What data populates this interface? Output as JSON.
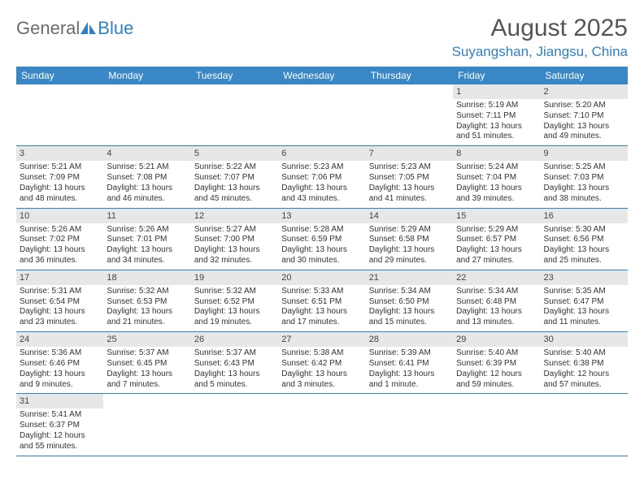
{
  "branding": {
    "logo_word1": "General",
    "logo_word2": "Blue",
    "logo_color_gray": "#6b6b6b",
    "logo_color_blue": "#2f81c5"
  },
  "header": {
    "title": "August 2025",
    "subtitle": "Suyangshan, Jiangsu, China"
  },
  "colors": {
    "header_row_bg": "#3a87c8",
    "header_row_text": "#ffffff",
    "daynum_bg": "#e7e7e7",
    "cell_border": "#2f81c5",
    "text": "#333333"
  },
  "dayNames": [
    "Sunday",
    "Monday",
    "Tuesday",
    "Wednesday",
    "Thursday",
    "Friday",
    "Saturday"
  ],
  "weeks": [
    [
      null,
      null,
      null,
      null,
      null,
      {
        "day": "1",
        "sunrise": "Sunrise: 5:19 AM",
        "sunset": "Sunset: 7:11 PM",
        "daylight1": "Daylight: 13 hours",
        "daylight2": "and 51 minutes."
      },
      {
        "day": "2",
        "sunrise": "Sunrise: 5:20 AM",
        "sunset": "Sunset: 7:10 PM",
        "daylight1": "Daylight: 13 hours",
        "daylight2": "and 49 minutes."
      }
    ],
    [
      {
        "day": "3",
        "sunrise": "Sunrise: 5:21 AM",
        "sunset": "Sunset: 7:09 PM",
        "daylight1": "Daylight: 13 hours",
        "daylight2": "and 48 minutes."
      },
      {
        "day": "4",
        "sunrise": "Sunrise: 5:21 AM",
        "sunset": "Sunset: 7:08 PM",
        "daylight1": "Daylight: 13 hours",
        "daylight2": "and 46 minutes."
      },
      {
        "day": "5",
        "sunrise": "Sunrise: 5:22 AM",
        "sunset": "Sunset: 7:07 PM",
        "daylight1": "Daylight: 13 hours",
        "daylight2": "and 45 minutes."
      },
      {
        "day": "6",
        "sunrise": "Sunrise: 5:23 AM",
        "sunset": "Sunset: 7:06 PM",
        "daylight1": "Daylight: 13 hours",
        "daylight2": "and 43 minutes."
      },
      {
        "day": "7",
        "sunrise": "Sunrise: 5:23 AM",
        "sunset": "Sunset: 7:05 PM",
        "daylight1": "Daylight: 13 hours",
        "daylight2": "and 41 minutes."
      },
      {
        "day": "8",
        "sunrise": "Sunrise: 5:24 AM",
        "sunset": "Sunset: 7:04 PM",
        "daylight1": "Daylight: 13 hours",
        "daylight2": "and 39 minutes."
      },
      {
        "day": "9",
        "sunrise": "Sunrise: 5:25 AM",
        "sunset": "Sunset: 7:03 PM",
        "daylight1": "Daylight: 13 hours",
        "daylight2": "and 38 minutes."
      }
    ],
    [
      {
        "day": "10",
        "sunrise": "Sunrise: 5:26 AM",
        "sunset": "Sunset: 7:02 PM",
        "daylight1": "Daylight: 13 hours",
        "daylight2": "and 36 minutes."
      },
      {
        "day": "11",
        "sunrise": "Sunrise: 5:26 AM",
        "sunset": "Sunset: 7:01 PM",
        "daylight1": "Daylight: 13 hours",
        "daylight2": "and 34 minutes."
      },
      {
        "day": "12",
        "sunrise": "Sunrise: 5:27 AM",
        "sunset": "Sunset: 7:00 PM",
        "daylight1": "Daylight: 13 hours",
        "daylight2": "and 32 minutes."
      },
      {
        "day": "13",
        "sunrise": "Sunrise: 5:28 AM",
        "sunset": "Sunset: 6:59 PM",
        "daylight1": "Daylight: 13 hours",
        "daylight2": "and 30 minutes."
      },
      {
        "day": "14",
        "sunrise": "Sunrise: 5:29 AM",
        "sunset": "Sunset: 6:58 PM",
        "daylight1": "Daylight: 13 hours",
        "daylight2": "and 29 minutes."
      },
      {
        "day": "15",
        "sunrise": "Sunrise: 5:29 AM",
        "sunset": "Sunset: 6:57 PM",
        "daylight1": "Daylight: 13 hours",
        "daylight2": "and 27 minutes."
      },
      {
        "day": "16",
        "sunrise": "Sunrise: 5:30 AM",
        "sunset": "Sunset: 6:56 PM",
        "daylight1": "Daylight: 13 hours",
        "daylight2": "and 25 minutes."
      }
    ],
    [
      {
        "day": "17",
        "sunrise": "Sunrise: 5:31 AM",
        "sunset": "Sunset: 6:54 PM",
        "daylight1": "Daylight: 13 hours",
        "daylight2": "and 23 minutes."
      },
      {
        "day": "18",
        "sunrise": "Sunrise: 5:32 AM",
        "sunset": "Sunset: 6:53 PM",
        "daylight1": "Daylight: 13 hours",
        "daylight2": "and 21 minutes."
      },
      {
        "day": "19",
        "sunrise": "Sunrise: 5:32 AM",
        "sunset": "Sunset: 6:52 PM",
        "daylight1": "Daylight: 13 hours",
        "daylight2": "and 19 minutes."
      },
      {
        "day": "20",
        "sunrise": "Sunrise: 5:33 AM",
        "sunset": "Sunset: 6:51 PM",
        "daylight1": "Daylight: 13 hours",
        "daylight2": "and 17 minutes."
      },
      {
        "day": "21",
        "sunrise": "Sunrise: 5:34 AM",
        "sunset": "Sunset: 6:50 PM",
        "daylight1": "Daylight: 13 hours",
        "daylight2": "and 15 minutes."
      },
      {
        "day": "22",
        "sunrise": "Sunrise: 5:34 AM",
        "sunset": "Sunset: 6:48 PM",
        "daylight1": "Daylight: 13 hours",
        "daylight2": "and 13 minutes."
      },
      {
        "day": "23",
        "sunrise": "Sunrise: 5:35 AM",
        "sunset": "Sunset: 6:47 PM",
        "daylight1": "Daylight: 13 hours",
        "daylight2": "and 11 minutes."
      }
    ],
    [
      {
        "day": "24",
        "sunrise": "Sunrise: 5:36 AM",
        "sunset": "Sunset: 6:46 PM",
        "daylight1": "Daylight: 13 hours",
        "daylight2": "and 9 minutes."
      },
      {
        "day": "25",
        "sunrise": "Sunrise: 5:37 AM",
        "sunset": "Sunset: 6:45 PM",
        "daylight1": "Daylight: 13 hours",
        "daylight2": "and 7 minutes."
      },
      {
        "day": "26",
        "sunrise": "Sunrise: 5:37 AM",
        "sunset": "Sunset: 6:43 PM",
        "daylight1": "Daylight: 13 hours",
        "daylight2": "and 5 minutes."
      },
      {
        "day": "27",
        "sunrise": "Sunrise: 5:38 AM",
        "sunset": "Sunset: 6:42 PM",
        "daylight1": "Daylight: 13 hours",
        "daylight2": "and 3 minutes."
      },
      {
        "day": "28",
        "sunrise": "Sunrise: 5:39 AM",
        "sunset": "Sunset: 6:41 PM",
        "daylight1": "Daylight: 13 hours",
        "daylight2": "and 1 minute."
      },
      {
        "day": "29",
        "sunrise": "Sunrise: 5:40 AM",
        "sunset": "Sunset: 6:39 PM",
        "daylight1": "Daylight: 12 hours",
        "daylight2": "and 59 minutes."
      },
      {
        "day": "30",
        "sunrise": "Sunrise: 5:40 AM",
        "sunset": "Sunset: 6:38 PM",
        "daylight1": "Daylight: 12 hours",
        "daylight2": "and 57 minutes."
      }
    ],
    [
      {
        "day": "31",
        "sunrise": "Sunrise: 5:41 AM",
        "sunset": "Sunset: 6:37 PM",
        "daylight1": "Daylight: 12 hours",
        "daylight2": "and 55 minutes."
      },
      null,
      null,
      null,
      null,
      null,
      null
    ]
  ]
}
